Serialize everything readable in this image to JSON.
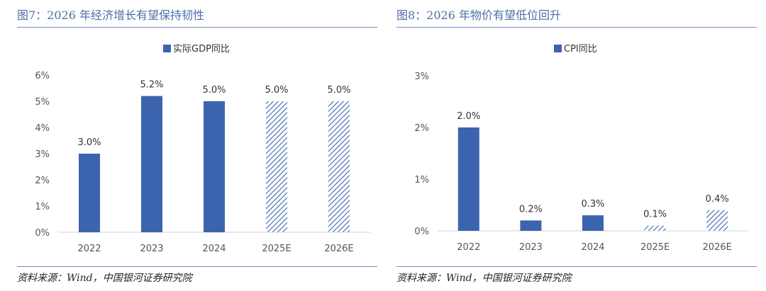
{
  "colors": {
    "bar": "#3c64ae",
    "hatch": "#3c64ae",
    "title": "#4a6fa8",
    "axis_text": "#555555"
  },
  "chart_data": [
    {
      "type": "bar",
      "figure_label": "图7：2026 年经济增长有望保持韧性",
      "legend": "实际GDP同比",
      "categories": [
        "2022",
        "2023",
        "2024",
        "2025E",
        "2026E"
      ],
      "values": [
        3.0,
        5.2,
        5.0,
        5.0,
        5.0
      ],
      "value_labels": [
        "3.0%",
        "5.2%",
        "5.0%",
        "5.0%",
        "5.0%"
      ],
      "forecast": [
        false,
        false,
        false,
        true,
        true
      ],
      "yticks": [
        "0%",
        "1%",
        "2%",
        "3%",
        "4%",
        "5%",
        "6%"
      ],
      "ylim": [
        0,
        6
      ],
      "source": "资料来源：Wind，中国银河证券研究院"
    },
    {
      "type": "bar",
      "figure_label": "图8：2026 年物价有望低位回升",
      "legend": "CPI同比",
      "categories": [
        "2022",
        "2023",
        "2024",
        "2025E",
        "2026E"
      ],
      "values": [
        2.0,
        0.2,
        0.3,
        0.1,
        0.4
      ],
      "value_labels": [
        "2.0%",
        "0.2%",
        "0.3%",
        "0.1%",
        "0.4%"
      ],
      "forecast": [
        false,
        false,
        false,
        true,
        true
      ],
      "yticks": [
        "0%",
        "1%",
        "2%",
        "3%"
      ],
      "ylim": [
        0,
        3
      ],
      "source": "资料来源：Wind，中国银河证券研究院"
    }
  ]
}
